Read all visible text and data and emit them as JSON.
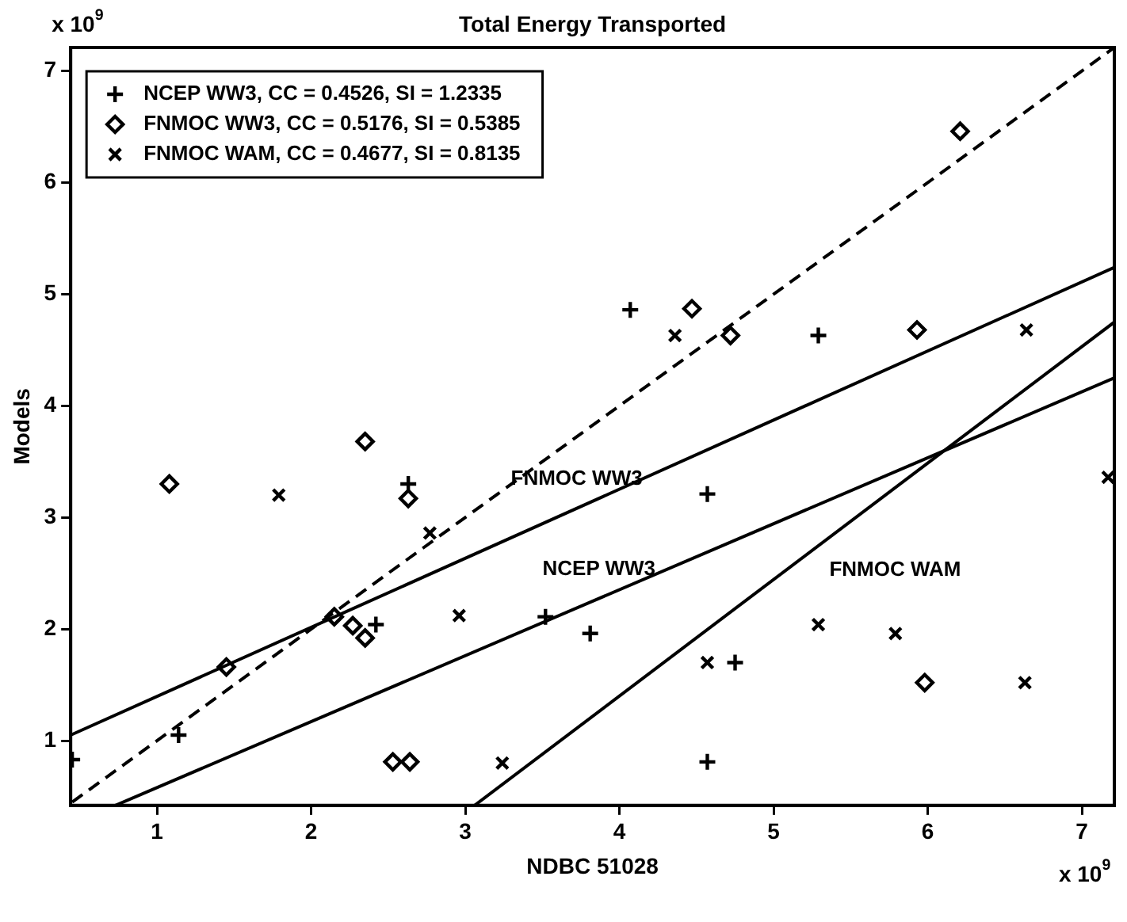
{
  "chart_data": {
    "type": "scatter",
    "title": "Total Energy Transported",
    "xlabel": "NDBC 51028",
    "ylabel": "Models",
    "xlim": [
      0.44,
      7.21
    ],
    "ylim": [
      0.42,
      7.21
    ],
    "xticks": [
      1,
      2,
      3,
      4,
      5,
      6,
      7
    ],
    "yticks": [
      1,
      2,
      3,
      4,
      5,
      6,
      7
    ],
    "grid": false,
    "legend": "top left",
    "annotations": [
      "x 10$^{9}$",
      "x 10$^{9}$"
    ],
    "series": [
      {
        "name": "NCEP WW3, CC = 0.4526, SI = 1.2335",
        "color": "#000000",
        "marker": "cross",
        "x": [
          0.45,
          1.14,
          2.63,
          2.42,
          3.52,
          3.81,
          4.07,
          4.57,
          4.57,
          4.75,
          5.29
        ],
        "values": [
          0.83,
          1.05,
          3.3,
          2.04,
          2.11,
          1.96,
          4.86,
          3.21,
          0.81,
          1.7,
          4.63
        ]
      },
      {
        "name": "FNMOC WW3, CC = 0.5176, SI = 0.5385",
        "color": "#000000",
        "marker": "diamond",
        "x": [
          1.08,
          1.45,
          2.15,
          2.27,
          2.35,
          2.35,
          2.63,
          2.53,
          2.64,
          4.47,
          4.72,
          5.93,
          5.98,
          6.21
        ],
        "values": [
          3.3,
          1.66,
          2.11,
          2.03,
          1.92,
          3.68,
          3.17,
          0.81,
          0.81,
          4.87,
          4.63,
          4.68,
          1.52,
          6.46
        ]
      },
      {
        "name": "FNMOC WAM, CC = 0.4677, SI = 0.8135",
        "color": "#000000",
        "marker": "x",
        "x": [
          1.79,
          2.77,
          2.96,
          3.24,
          4.36,
          4.57,
          5.29,
          5.79,
          6.63,
          6.64,
          7.17
        ],
        "values": [
          3.2,
          2.86,
          2.12,
          0.8,
          4.63,
          1.7,
          2.04,
          1.96,
          1.52,
          4.68,
          3.36
        ]
      },
      {
        "type": "line",
        "color": "#000000",
        "line_style": "dashed",
        "marker": "none",
        "x": [
          0.45,
          7.2
        ],
        "values": [
          0.45,
          7.2
        ]
      },
      {
        "name": "FNMOC WW3",
        "type": "line",
        "color": "#000000",
        "line_style": "solid",
        "marker": "none",
        "x": [
          0.44,
          7.21
        ],
        "values": [
          1.05,
          5.24
        ]
      },
      {
        "name": "NCEP WW3",
        "type": "line",
        "color": "#000000",
        "line_style": "solid",
        "marker": "none",
        "x": [
          0.73,
          7.21
        ],
        "values": [
          0.42,
          4.25
        ]
      },
      {
        "name": "FNMOC WAM",
        "type": "line",
        "color": "#000000",
        "line_style": "solid",
        "marker": "none",
        "x": [
          3.06,
          7.21
        ],
        "values": [
          0.42,
          4.75
        ]
      }
    ]
  }
}
